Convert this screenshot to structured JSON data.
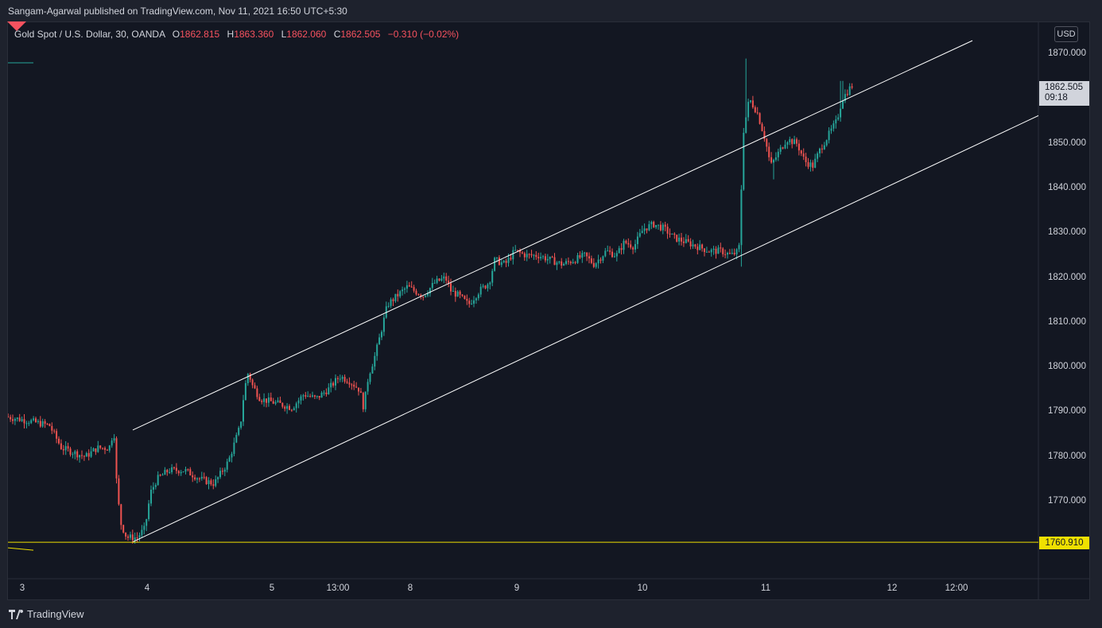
{
  "header": {
    "publish_text": "Sangam-Agarwal published on TradingView.com, Nov 11, 2021 16:50 UTC+5:30"
  },
  "legend": {
    "symbol": "Gold Spot / U.S. Dollar, 30, OANDA",
    "open_label": "O",
    "open": "1862.815",
    "high_label": "H",
    "high": "1863.360",
    "low_label": "L",
    "low": "1862.060",
    "close_label": "C",
    "close": "1862.505",
    "change": "−0.310 (−0.02%)"
  },
  "currency_button": "USD",
  "current_price": {
    "value": "1862.505",
    "countdown": "09:18"
  },
  "horizontal_line_label": "1760.910",
  "brand": "TradingView",
  "colors": {
    "up": "#26a69a",
    "down": "#ef5350",
    "channel": "#ffffff",
    "horizontal_line": "#f0e000",
    "background": "#131722"
  },
  "chart_data": {
    "type": "candlestick",
    "title": "",
    "xlabel": "",
    "ylabel": "",
    "ylim": [
      1755,
      1876
    ],
    "y_ticks": [
      "1870.000",
      "1860.000",
      "1850.000",
      "1840.000",
      "1830.000",
      "1820.000",
      "1810.000",
      "1800.000",
      "1790.000",
      "1780.000",
      "1770.000"
    ],
    "x_ticks": [
      "3",
      "4",
      "5",
      "13:00",
      "8",
      "9",
      "10",
      "11",
      "12",
      "12:00"
    ],
    "grid": false,
    "price_path": [
      [
        0,
        1789
      ],
      [
        30,
        1788
      ],
      [
        55,
        1787
      ],
      [
        70,
        1782
      ],
      [
        85,
        1781
      ],
      [
        100,
        1780
      ],
      [
        115,
        1782
      ],
      [
        130,
        1782
      ],
      [
        136,
        1786
      ],
      [
        140,
        1772
      ],
      [
        145,
        1765
      ],
      [
        152,
        1762
      ],
      [
        165,
        1762
      ],
      [
        175,
        1764
      ],
      [
        182,
        1772
      ],
      [
        190,
        1775
      ],
      [
        205,
        1777
      ],
      [
        225,
        1777
      ],
      [
        245,
        1775
      ],
      [
        262,
        1774
      ],
      [
        280,
        1779
      ],
      [
        295,
        1787
      ],
      [
        300,
        1795
      ],
      [
        305,
        1799
      ],
      [
        310,
        1796
      ],
      [
        320,
        1793
      ],
      [
        340,
        1792
      ],
      [
        360,
        1791
      ],
      [
        375,
        1794
      ],
      [
        390,
        1793
      ],
      [
        405,
        1795
      ],
      [
        420,
        1798
      ],
      [
        432,
        1797
      ],
      [
        445,
        1795
      ],
      [
        450,
        1791
      ],
      [
        456,
        1798
      ],
      [
        465,
        1803
      ],
      [
        472,
        1808
      ],
      [
        480,
        1814
      ],
      [
        492,
        1816
      ],
      [
        505,
        1818
      ],
      [
        515,
        1817
      ],
      [
        525,
        1816
      ],
      [
        540,
        1819
      ],
      [
        553,
        1820
      ],
      [
        560,
        1817
      ],
      [
        570,
        1816
      ],
      [
        582,
        1814
      ],
      [
        595,
        1817
      ],
      [
        608,
        1819
      ],
      [
        615,
        1824
      ],
      [
        628,
        1823
      ],
      [
        640,
        1826
      ],
      [
        655,
        1825
      ],
      [
        670,
        1825
      ],
      [
        685,
        1824
      ],
      [
        700,
        1823
      ],
      [
        715,
        1824
      ],
      [
        728,
        1825
      ],
      [
        740,
        1823
      ],
      [
        755,
        1826
      ],
      [
        768,
        1825
      ],
      [
        778,
        1828
      ],
      [
        790,
        1827
      ],
      [
        802,
        1831
      ],
      [
        815,
        1832
      ],
      [
        828,
        1831
      ],
      [
        840,
        1829
      ],
      [
        855,
        1828
      ],
      [
        870,
        1827
      ],
      [
        885,
        1826
      ],
      [
        900,
        1826
      ],
      [
        912,
        1825
      ],
      [
        922,
        1826
      ],
      [
        928,
        1853
      ],
      [
        935,
        1860
      ],
      [
        945,
        1857
      ],
      [
        955,
        1851
      ],
      [
        962,
        1845
      ],
      [
        972,
        1848
      ],
      [
        982,
        1851
      ],
      [
        995,
        1850
      ],
      [
        1005,
        1846
      ],
      [
        1015,
        1845
      ],
      [
        1025,
        1849
      ],
      [
        1035,
        1852
      ],
      [
        1045,
        1855
      ],
      [
        1052,
        1860
      ],
      [
        1062,
        1862.5
      ]
    ],
    "ohlc_last": {
      "open": 1862.815,
      "high": 1863.36,
      "low": 1862.06,
      "close": 1862.505
    },
    "channel_upper": [
      [
        158,
        1786
      ],
      [
        1214,
        1873
      ]
    ],
    "channel_lower": [
      [
        158,
        1761
      ],
      [
        1306,
        1857
      ]
    ],
    "horizontal_line": 1760.91,
    "current_price": 1862.505
  }
}
